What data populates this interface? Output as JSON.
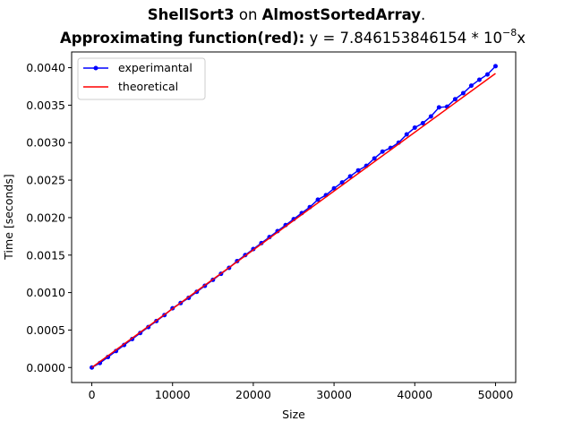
{
  "chart_data": {
    "type": "line",
    "title": {
      "line1": {
        "algo": "ShellSort3",
        "on": " on ",
        "array": "AlmostSortedArray",
        "dot": "."
      },
      "line2": {
        "prefix": "Approximating function(red):",
        "formula": " y = 7.846153846154 * 10",
        "exp": "−8",
        "suffix": "x"
      }
    },
    "xlabel": "Size",
    "ylabel": "Time [seconds]",
    "xlim": [
      -2500,
      52500
    ],
    "ylim": [
      -0.0002,
      0.00421
    ],
    "xticks": [
      0,
      10000,
      20000,
      30000,
      40000,
      50000
    ],
    "xtick_labels": [
      "0",
      "10000",
      "20000",
      "30000",
      "40000",
      "50000"
    ],
    "yticks": [
      0.0,
      0.0005,
      0.001,
      0.0015,
      0.002,
      0.0025,
      0.003,
      0.0035,
      0.004
    ],
    "ytick_labels": [
      "0.0000",
      "0.0005",
      "0.0010",
      "0.0015",
      "0.0020",
      "0.0025",
      "0.0030",
      "0.0035",
      "0.0040"
    ],
    "legend_position": "top-left",
    "grid": false,
    "series": [
      {
        "name": "experimantal",
        "color": "#0000ff",
        "marker": "dot",
        "x": [
          0,
          1000,
          2000,
          3000,
          4000,
          5000,
          6000,
          7000,
          8000,
          9000,
          10000,
          11000,
          12000,
          13000,
          14000,
          15000,
          16000,
          17000,
          18000,
          19000,
          20000,
          21000,
          22000,
          23000,
          24000,
          25000,
          26000,
          27000,
          28000,
          29000,
          30000,
          31000,
          32000,
          33000,
          34000,
          35000,
          36000,
          37000,
          38000,
          39000,
          40000,
          41000,
          42000,
          43000,
          44000,
          45000,
          46000,
          47000,
          48000,
          49000,
          50000
        ],
        "y": [
          0.0,
          6e-05,
          0.00014,
          0.00022,
          0.0003,
          0.00038,
          0.00046,
          0.00054,
          0.00062,
          0.0007,
          0.00079,
          0.00086,
          0.00093,
          0.00101,
          0.00109,
          0.00117,
          0.00125,
          0.00133,
          0.00142,
          0.0015,
          0.00158,
          0.00166,
          0.00174,
          0.00182,
          0.0019,
          0.00198,
          0.00206,
          0.00214,
          0.00224,
          0.0023,
          0.00239,
          0.00247,
          0.00255,
          0.00263,
          0.00269,
          0.00279,
          0.00288,
          0.00293,
          0.003,
          0.00311,
          0.0032,
          0.00326,
          0.00335,
          0.00347,
          0.00348,
          0.00358,
          0.00366,
          0.00376,
          0.00384,
          0.00391,
          0.00402
        ]
      },
      {
        "name": "theoretical",
        "color": "#ff0000",
        "marker": "none",
        "x": [
          0,
          50000
        ],
        "y": [
          0.0,
          0.003923
        ]
      }
    ]
  }
}
